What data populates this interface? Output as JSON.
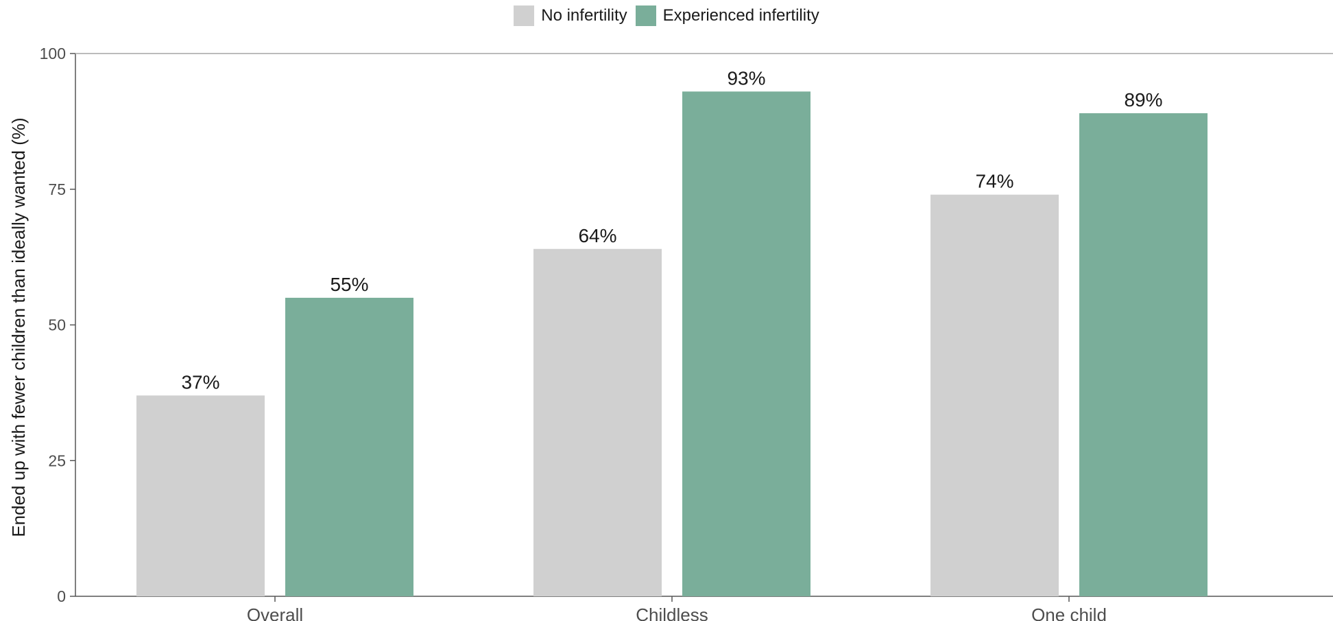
{
  "chart_data": {
    "type": "bar",
    "categories": [
      "Overall",
      "Childless",
      "One child"
    ],
    "series": [
      {
        "name": "No infertility",
        "values": [
          37,
          64,
          74
        ],
        "labels": [
          "37%",
          "64%",
          "74%"
        ],
        "color": "#d0d0d0"
      },
      {
        "name": "Experienced infertility",
        "values": [
          55,
          93,
          89
        ],
        "labels": [
          "55%",
          "93%",
          "89%"
        ],
        "color": "#7aae9a"
      }
    ],
    "ylabel": "Ended up with fewer children than ideally wanted (%)",
    "xlabel": "",
    "ylim": [
      0,
      100
    ],
    "yticks": [
      0,
      25,
      50,
      75,
      100
    ],
    "grid": false,
    "legend_position": "top"
  }
}
